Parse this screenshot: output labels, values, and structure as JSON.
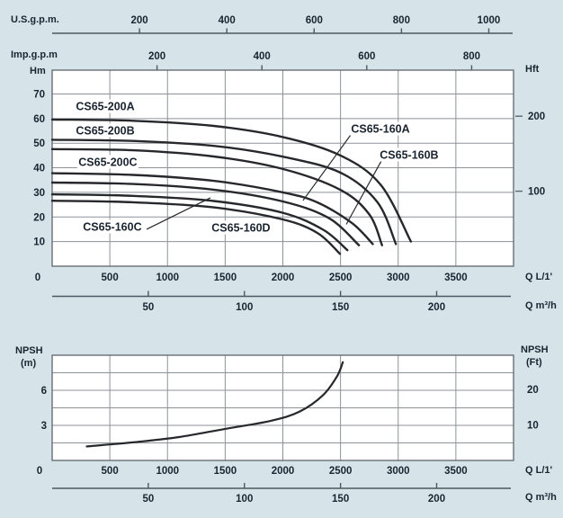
{
  "colors": {
    "background": "#d6e4ea",
    "plot_background": "#ffffff",
    "grid": "#8d9298",
    "border": "#5f656c",
    "ruler": "#4e565f",
    "curve": "#26282c",
    "text": "#1a2430"
  },
  "rulers": {
    "us_gpm": {
      "label": "U.S.g.p.m.",
      "ticks": [
        200,
        400,
        600,
        800,
        1000
      ]
    },
    "imp_gpm": {
      "label": "Imp.g.p.m",
      "ticks": [
        200,
        400,
        600,
        800
      ]
    },
    "flow_m3h_top": {
      "label": "Q m³/h",
      "ticks": [
        50,
        100,
        150,
        200
      ]
    },
    "flow_m3h_bottom": {
      "label": "Q m³/h",
      "ticks": [
        50,
        100,
        150,
        200
      ]
    }
  },
  "main_chart": {
    "y_left_label": "Hm",
    "y_right_label": "Hft",
    "x_unit_label": "Q L/1'",
    "y_left_ticks": [
      10,
      20,
      30,
      40,
      50,
      60,
      70
    ],
    "y_right_ticks": [
      100,
      200
    ],
    "x_ticks": [
      0,
      500,
      1000,
      1500,
      2000,
      2500,
      3000,
      3500
    ]
  },
  "npsh_chart": {
    "left_label_line1": "NPSH",
    "left_label_line2": "(m)",
    "right_label_line1": "NPSH",
    "right_label_line2": "(Ft)",
    "x_unit_label": "Q L/1'",
    "y_left_ticks": [
      3,
      6
    ],
    "y_right_ticks": [
      10,
      20
    ],
    "x_ticks": [
      0,
      500,
      1000,
      1500,
      2000,
      2500,
      3000,
      3500
    ]
  },
  "chart_data": [
    {
      "type": "line",
      "title": "CS65 pump head curves",
      "xlabel": "Q L/1'",
      "ylabel": "Hm",
      "ylabel_right": "Hft",
      "xlim": [
        0,
        4000
      ],
      "ylim": [
        0,
        79.7
      ],
      "grid": true,
      "x_gridlines": [
        500,
        1000,
        1500,
        2000,
        2500,
        3000,
        3500
      ],
      "y_gridlines": [
        10,
        20,
        30,
        40,
        50,
        60,
        70
      ],
      "series": [
        {
          "name": "CS65-200A",
          "points": [
            [
              0,
              59.6
            ],
            [
              700,
              59.1
            ],
            [
              1400,
              57.0
            ],
            [
              2000,
              52.5
            ],
            [
              2500,
              45.0
            ],
            [
              2850,
              33.0
            ],
            [
              3110,
              10.0
            ]
          ]
        },
        {
          "name": "CS65-200B",
          "points": [
            [
              0,
              51.4
            ],
            [
              700,
              50.9
            ],
            [
              1400,
              48.9
            ],
            [
              2000,
              44.5
            ],
            [
              2500,
              38.0
            ],
            [
              2820,
              26.0
            ],
            [
              2980,
              9.0
            ]
          ]
        },
        {
          "name": "CS65-200C",
          "points": [
            [
              0,
              47.6
            ],
            [
              700,
              47.1
            ],
            [
              1400,
              44.6
            ],
            [
              2000,
              39.5
            ],
            [
              2500,
              31.0
            ],
            [
              2750,
              21.0
            ],
            [
              2860,
              8.5
            ]
          ]
        },
        {
          "name": "CS65-160A",
          "points": [
            [
              0,
              37.8
            ],
            [
              700,
              37.1
            ],
            [
              1400,
              34.7
            ],
            [
              2000,
              30.0
            ],
            [
              2300,
              25.9
            ],
            [
              2600,
              17.5
            ],
            [
              2780,
              9.0
            ]
          ]
        },
        {
          "name": "CS65-160B",
          "points": [
            [
              0,
              34.0
            ],
            [
              700,
              33.4
            ],
            [
              1400,
              31.1
            ],
            [
              2000,
              26.3
            ],
            [
              2400,
              19.5
            ],
            [
              2660,
              8.5
            ]
          ]
        },
        {
          "name": "CS65-160C",
          "points": [
            [
              0,
              29.2
            ],
            [
              700,
              28.6
            ],
            [
              1400,
              26.5
            ],
            [
              2000,
              21.7
            ],
            [
              2350,
              14.8
            ],
            [
              2560,
              6.5
            ]
          ]
        },
        {
          "name": "CS65-160D",
          "points": [
            [
              0,
              26.6
            ],
            [
              700,
              26.0
            ],
            [
              1400,
              23.9
            ],
            [
              2000,
              19.0
            ],
            [
              2300,
              13.5
            ],
            [
              2495,
              5.0
            ]
          ]
        }
      ],
      "curve_labels": [
        {
          "text": "CS65-200A",
          "q": 460,
          "h": 65.0
        },
        {
          "text": "CS65-200B",
          "q": 460,
          "h": 55.2
        },
        {
          "text": "CS65-200C",
          "q": 483,
          "h": 42.4
        },
        {
          "text": "CS65-160A",
          "q": 2846,
          "h": 55.9
        },
        {
          "text": "CS65-160B",
          "q": 3095,
          "h": 45.3
        },
        {
          "text": "CS65-160C",
          "q": 522,
          "h": 16.1
        },
        {
          "text": "CS65-160D",
          "q": 1637,
          "h": 15.7
        }
      ],
      "pointer_lines": [
        {
          "for": "CS65-160A",
          "q1": 2589,
          "h1": 53.4,
          "q2": 2175,
          "h2": 26.7
        },
        {
          "for": "CS65-160B",
          "q1": 2854,
          "h1": 42.8,
          "q2": 2550,
          "h2": 17.0
        },
        {
          "for": "CS65-160C",
          "q1": 819,
          "h1": 15.0,
          "q2": 1372,
          "h2": 27.8
        }
      ]
    },
    {
      "type": "line",
      "title": "NPSH curve",
      "xlabel": "Q L/1'",
      "ylabel": "NPSH (m)",
      "ylabel_right": "NPSH (Ft)",
      "xlim": [
        0,
        4000
      ],
      "ylim": [
        0,
        9
      ],
      "grid": true,
      "x_gridlines": [
        500,
        1000,
        1500,
        2000,
        2500,
        3000,
        3500
      ],
      "y_gridlines": [
        1.5,
        3,
        4.5,
        6,
        7.5
      ],
      "series": [
        {
          "name": "NPSH",
          "points": [
            [
              300,
              1.2
            ],
            [
              700,
              1.55
            ],
            [
              1100,
              2.0
            ],
            [
              1500,
              2.7
            ],
            [
              1900,
              3.4
            ],
            [
              2150,
              4.2
            ],
            [
              2350,
              5.6
            ],
            [
              2470,
              7.2
            ],
            [
              2520,
              8.4
            ]
          ]
        }
      ]
    }
  ]
}
